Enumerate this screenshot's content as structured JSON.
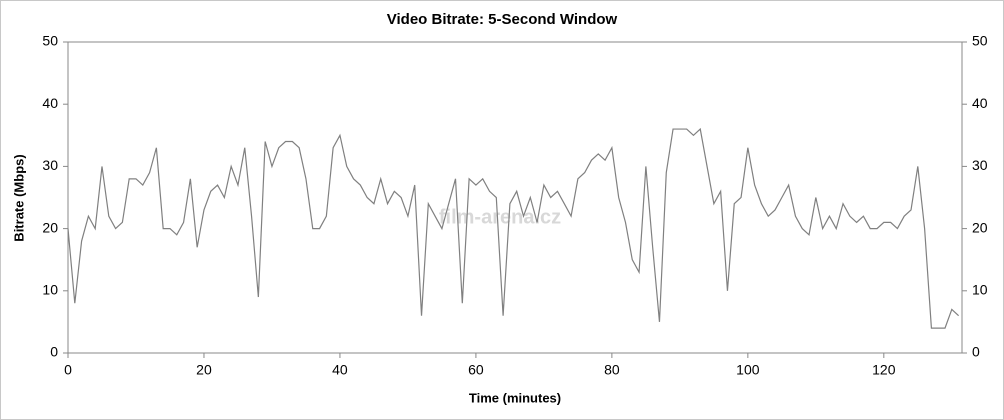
{
  "chart_data": {
    "type": "line",
    "title": "Video Bitrate: 5-Second Window",
    "xlabel": "Time (minutes)",
    "ylabel": "Bitrate (Mbps)",
    "watermark": "film-arena.cz",
    "x": [
      0,
      1,
      2,
      3,
      4,
      5,
      6,
      7,
      8,
      9,
      10,
      11,
      12,
      13,
      14,
      15,
      16,
      17,
      18,
      19,
      20,
      21,
      22,
      23,
      24,
      25,
      26,
      27,
      28,
      29,
      30,
      31,
      32,
      33,
      34,
      35,
      36,
      37,
      38,
      39,
      40,
      41,
      42,
      43,
      44,
      45,
      46,
      47,
      48,
      49,
      50,
      51,
      52,
      53,
      54,
      55,
      56,
      57,
      58,
      59,
      60,
      61,
      62,
      63,
      64,
      65,
      66,
      67,
      68,
      69,
      70,
      71,
      72,
      73,
      74,
      75,
      76,
      77,
      78,
      79,
      80,
      81,
      82,
      83,
      84,
      85,
      86,
      87,
      88,
      89,
      90,
      91,
      92,
      93,
      94,
      95,
      96,
      97,
      98,
      99,
      100,
      101,
      102,
      103,
      104,
      105,
      106,
      107,
      108,
      109,
      110,
      111,
      112,
      113,
      114,
      115,
      116,
      117,
      118,
      119,
      120,
      121,
      122,
      123,
      124,
      125,
      126,
      127,
      128,
      129,
      130,
      131
    ],
    "values": [
      20,
      8,
      18,
      22,
      20,
      30,
      22,
      20,
      21,
      28,
      28,
      27,
      29,
      33,
      20,
      20,
      19,
      21,
      28,
      17,
      23,
      26,
      27,
      25,
      30,
      27,
      33,
      22,
      9,
      34,
      30,
      33,
      34,
      34,
      33,
      28,
      20,
      20,
      22,
      33,
      35,
      30,
      28,
      27,
      25,
      24,
      28,
      24,
      26,
      25,
      22,
      27,
      6,
      24,
      22,
      20,
      24,
      28,
      8,
      28,
      27,
      28,
      26,
      25,
      6,
      24,
      26,
      22,
      25,
      21,
      27,
      25,
      26,
      24,
      22,
      28,
      29,
      31,
      32,
      31,
      33,
      25,
      21,
      15,
      13,
      30,
      17,
      5,
      29,
      36,
      36,
      36,
      35,
      36,
      30,
      24,
      26,
      10,
      24,
      25,
      33,
      27,
      24,
      22,
      23,
      25,
      27,
      22,
      20,
      19,
      25,
      20,
      22,
      20,
      24,
      22,
      21,
      22,
      20,
      20,
      21,
      21,
      20,
      22,
      23,
      30,
      20,
      4,
      4,
      4,
      7,
      6
    ],
    "color": "#808080",
    "xlim": [
      0,
      131.5
    ],
    "xticks": [
      0,
      20,
      40,
      60,
      80,
      100,
      120
    ],
    "ylim": [
      0,
      50
    ],
    "yticks": [
      0,
      10,
      20,
      30,
      40,
      50
    ],
    "y2lim": [
      0,
      50
    ],
    "y2ticks": [
      0,
      10,
      20,
      30,
      40,
      50
    ],
    "grid": false
  }
}
